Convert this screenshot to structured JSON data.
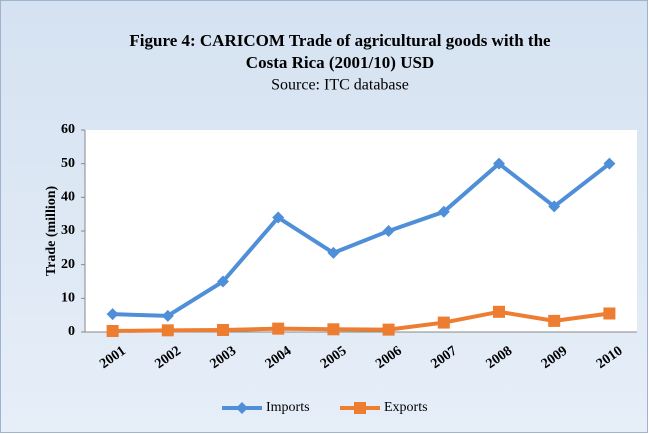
{
  "chart_data": {
    "type": "line",
    "title": [
      "Figure 4: CARICOM Trade of agricultural goods with the",
      "Costa Rica (2001/10) USD"
    ],
    "subtitle": "Source: ITC database",
    "y_label": "Trade (million)",
    "categories": [
      "2001",
      "2002",
      "2003",
      "2004",
      "2005",
      "2006",
      "2007",
      "2008",
      "2009",
      "2010"
    ],
    "series": [
      {
        "name": "Imports",
        "color": "#4f8fd8",
        "marker": "diamond",
        "values": [
          5.3,
          4.8,
          15,
          34,
          23.5,
          30,
          35.7,
          50,
          37.3,
          50
        ]
      },
      {
        "name": "Exports",
        "color": "#ed7d31",
        "marker": "square",
        "values": [
          0.3,
          0.5,
          0.6,
          1,
          0.8,
          0.7,
          2.8,
          6,
          3.3,
          5.5
        ]
      }
    ],
    "ylim": [
      0,
      60
    ],
    "yticks": [
      0,
      10,
      20,
      30,
      40,
      50,
      60
    ],
    "grid": false,
    "legend": "bottom"
  }
}
